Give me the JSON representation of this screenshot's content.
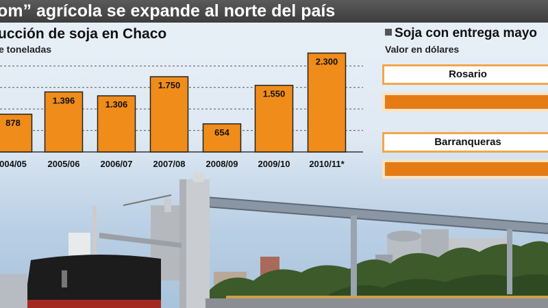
{
  "header": {
    "title": "om” agrícola se expande al norte del país"
  },
  "chart_data": {
    "type": "bar",
    "title": "ucción de soja en Chaco",
    "subtitle": "e toneladas",
    "categories": [
      "004/05",
      "2005/06",
      "2006/07",
      "2007/08",
      "2008/09",
      "2009/10",
      "2010/11*"
    ],
    "values": [
      878,
      1396,
      1306,
      1750,
      654,
      1550,
      2300
    ],
    "value_labels": [
      "878",
      "1.396",
      "1.306",
      "1.750",
      "654",
      "1.550",
      "2.300"
    ],
    "ylim": [
      0,
      2500
    ],
    "grid": true,
    "bar_color": "#f08c1a"
  },
  "side_panel": {
    "title": "Soja con entrega mayo",
    "subtitle": "Valor en dólares",
    "items": [
      {
        "label": "Rosario",
        "bar_color": "#e57b14"
      },
      {
        "label": "Barranqueras",
        "bar_color": "#e57b14"
      }
    ]
  }
}
